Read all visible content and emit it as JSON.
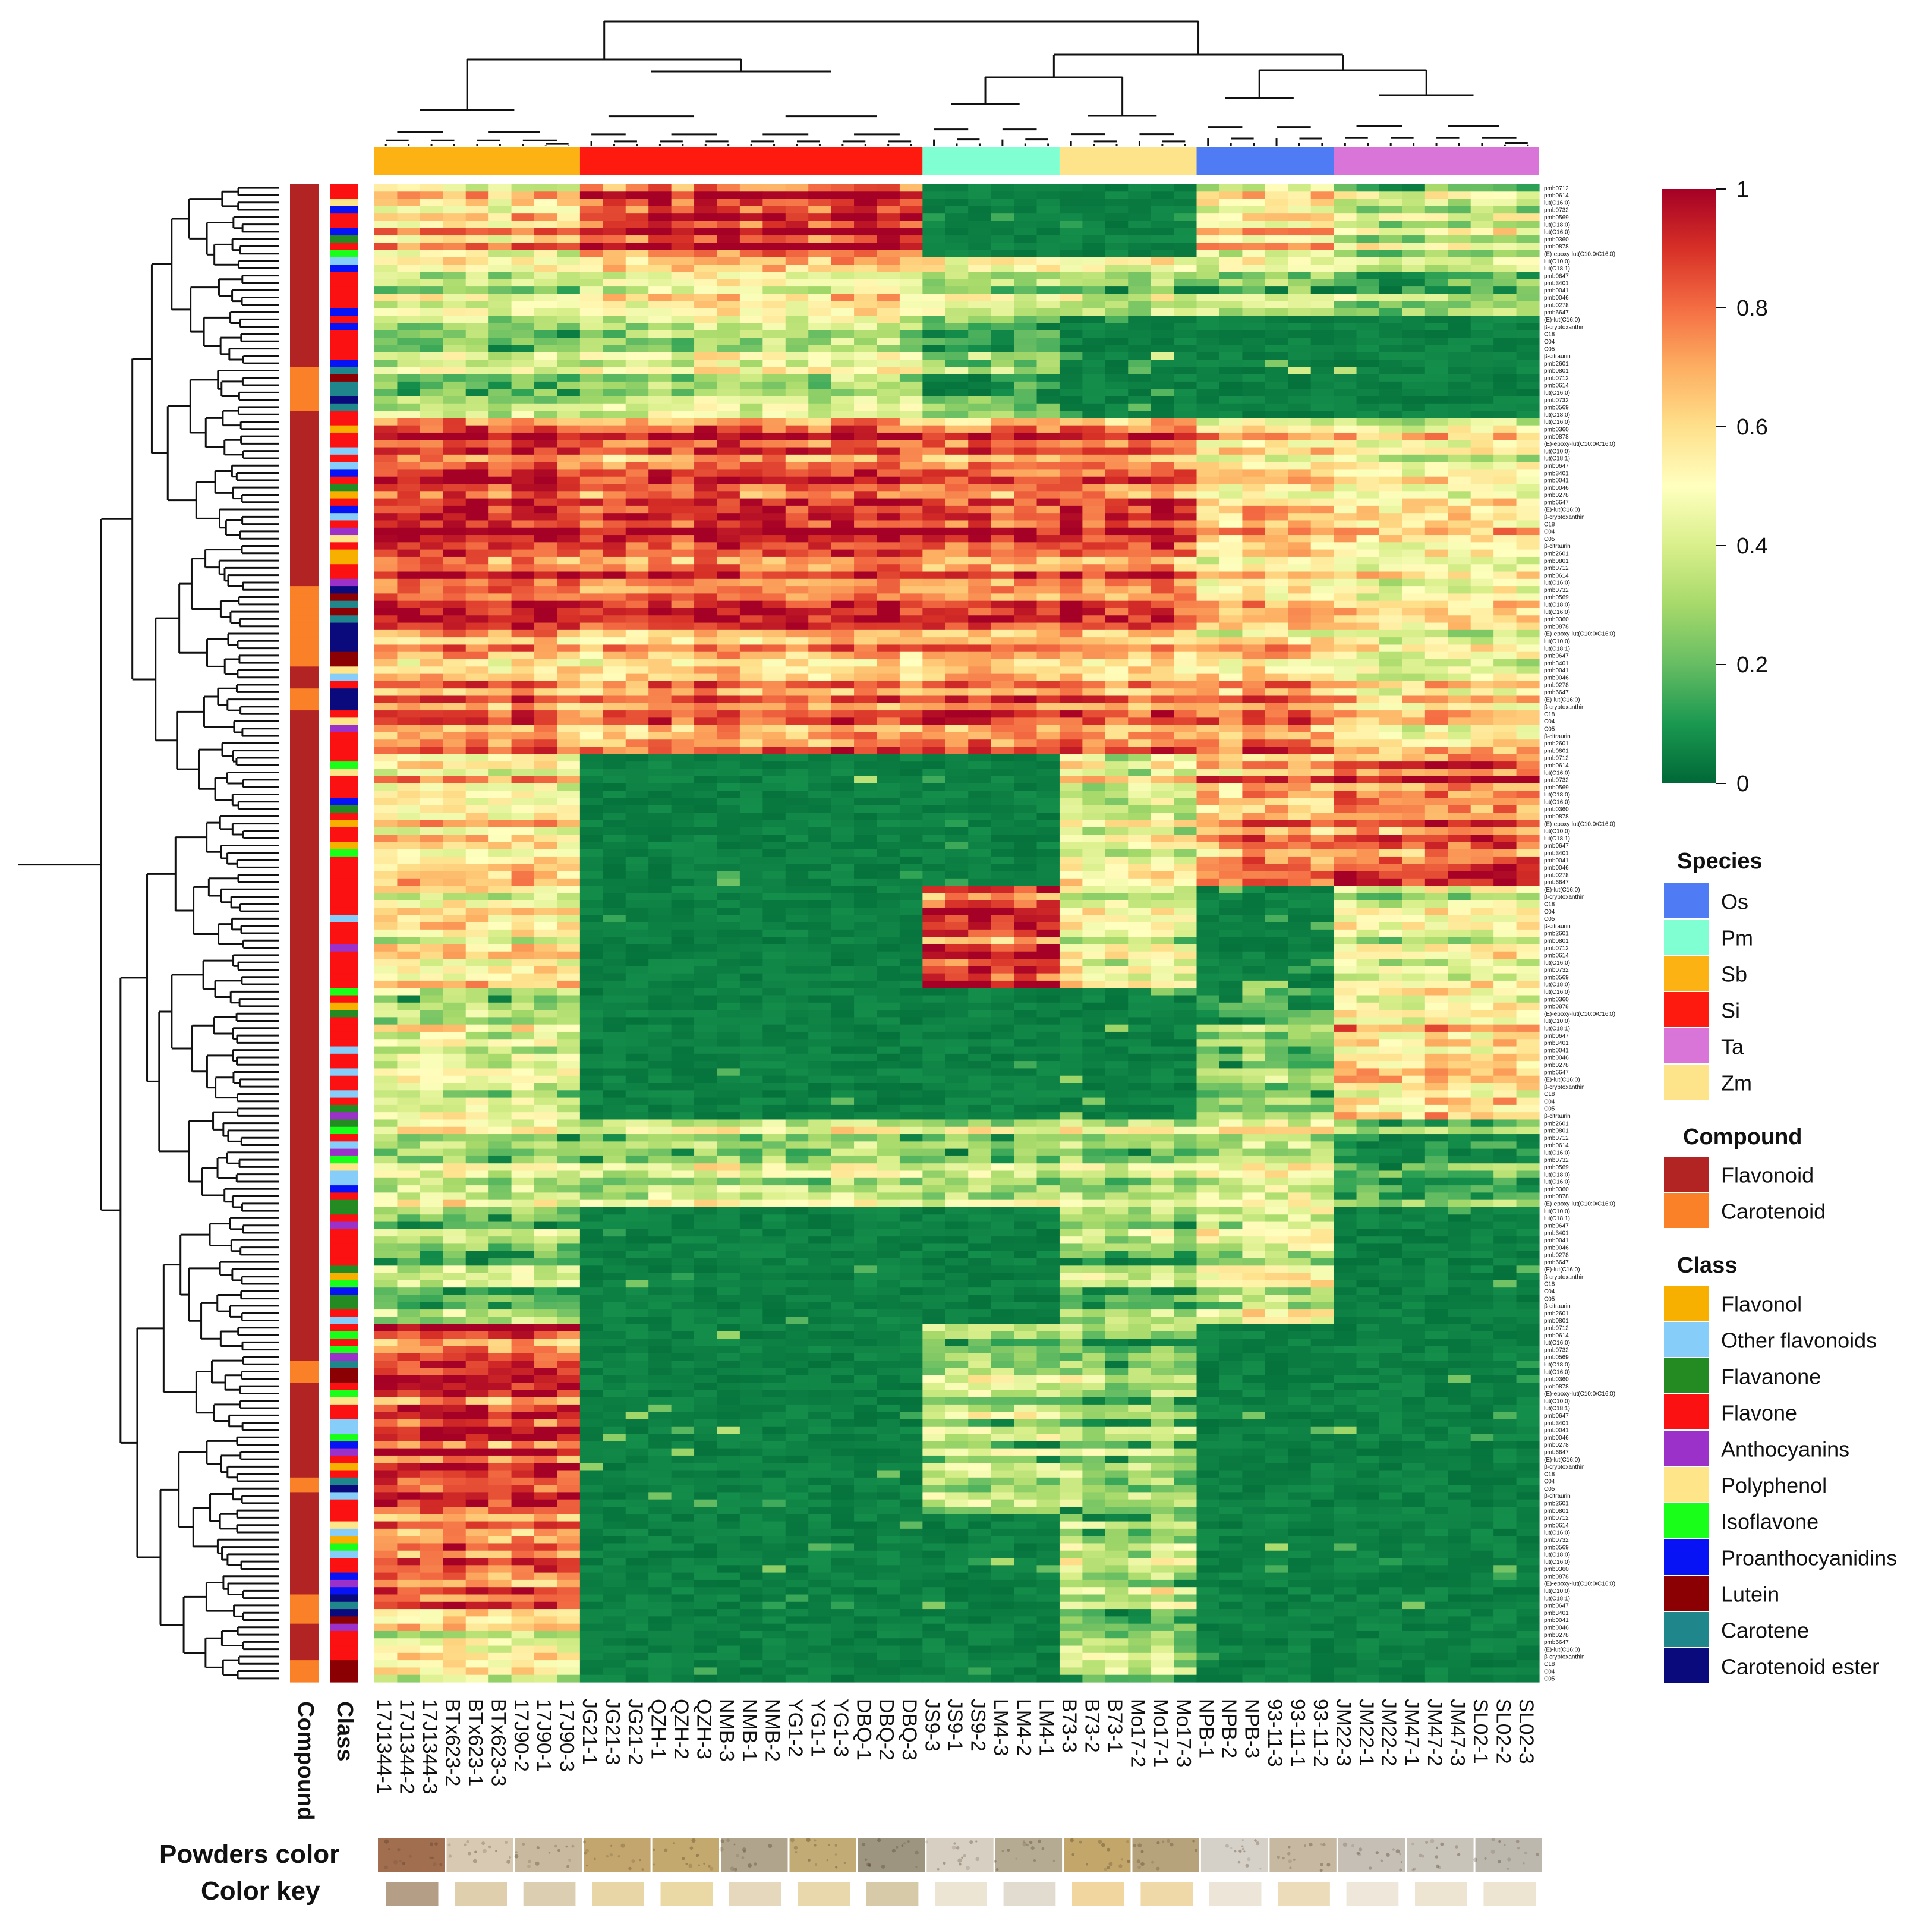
{
  "chart_data": {
    "type": "heatmap",
    "samples": [
      "17J1344-1",
      "17J1344-2",
      "17J1344-3",
      "BTx623-2",
      "BTx623-1",
      "BTx623-3",
      "17J90-2",
      "17J90-1",
      "17J90-3",
      "JG21-1",
      "JG21-3",
      "JG21-2",
      "QZH-1",
      "QZH-2",
      "QZH-3",
      "NMB-3",
      "NMB-1",
      "NMB-2",
      "YG1-2",
      "YG1-1",
      "YG1-3",
      "DBQ-1",
      "DBQ-2",
      "DBQ-3",
      "JS9-3",
      "JS9-1",
      "JS9-2",
      "LM4-3",
      "LM4-2",
      "LM4-1",
      "B73-3",
      "B73-2",
      "B73-1",
      "Mo17-2",
      "Mo17-1",
      "Mo17-3",
      "NPB-1",
      "NPB-2",
      "NPB-3",
      "93-11-3",
      "93-11-1",
      "93-11-2",
      "JM22-3",
      "JM22-1",
      "JM22-2",
      "JM47-1",
      "JM47-2",
      "JM47-3",
      "SL02-1",
      "SL02-2",
      "SL02-3"
    ],
    "species_groups": [
      {
        "species": "Sb",
        "count": 9
      },
      {
        "species": "Si",
        "count": 15
      },
      {
        "species": "Pm",
        "count": 6
      },
      {
        "species": "Zm",
        "count": 6
      },
      {
        "species": "Os",
        "count": 6
      },
      {
        "species": "Ta",
        "count": 9
      }
    ],
    "row_count": 205,
    "color_scale": {
      "min": 0,
      "max": 1,
      "ticks": [
        "1",
        "0.8",
        "0.6",
        "0.4",
        "0.2",
        "0"
      ],
      "colors": [
        "#006837",
        "#1a9850",
        "#66bd63",
        "#a6d96a",
        "#d9ef8b",
        "#ffffbf",
        "#fee08b",
        "#fdae61",
        "#f46d43",
        "#d73027",
        "#a50026"
      ]
    },
    "row_labels_visible": [
      "pmb0712",
      "pmb0614",
      "lut(C16:0)",
      "pmb0732",
      "pmb0569",
      "lut(C18:0)",
      "lut(C16:0)",
      "pmb0360",
      "pmb0878",
      "(E)-epoxy-lut(C10:0/C16:0)",
      "lut(C10:0)",
      "lut(C18:1)",
      "pmb0647",
      "pmb3401",
      "pmb0041",
      "pmb0046",
      "pmb0278",
      "pmb6647",
      "(E)-lut(C16:0)",
      "β-cryptoxanthin",
      "C18",
      "C04",
      "C05",
      "β-citraurin",
      "pmb2601",
      "pmb0801"
    ]
  },
  "legends": {
    "species": {
      "title": "Species",
      "items": [
        {
          "label": "Os",
          "color": "#4f7cf5"
        },
        {
          "label": "Pm",
          "color": "#7fffd2"
        },
        {
          "label": "Sb",
          "color": "#fbb212"
        },
        {
          "label": "Si",
          "color": "#ff1a0f"
        },
        {
          "label": "Ta",
          "color": "#d974d8"
        },
        {
          "label": "Zm",
          "color": "#fde38a"
        }
      ]
    },
    "compound": {
      "title": "Compound",
      "items": [
        {
          "label": "Flavonoid",
          "color": "#b22424"
        },
        {
          "label": "Carotenoid",
          "color": "#fa8127"
        }
      ]
    },
    "class": {
      "title": "Class",
      "items": [
        {
          "label": "Flavonol",
          "color": "#f8b000"
        },
        {
          "label": "Other flavonoids",
          "color": "#86cdfa"
        },
        {
          "label": "Flavanone",
          "color": "#238b22"
        },
        {
          "label": "Flavone",
          "color": "#fb1111"
        },
        {
          "label": "Anthocyanins",
          "color": "#9b31c8"
        },
        {
          "label": "Polyphenol",
          "color": "#fee58a"
        },
        {
          "label": "Isoflavone",
          "color": "#19ff19"
        },
        {
          "label": "Proanthocyanidins",
          "color": "#0713f5"
        },
        {
          "label": "Lutein",
          "color": "#8b0002"
        },
        {
          "label": "Carotene",
          "color": "#1f868b"
        },
        {
          "label": "Carotenoid ester",
          "color": "#0a0a7c"
        }
      ]
    }
  },
  "axis_labels": {
    "compound": "Compound",
    "class": "Class"
  },
  "bottom": {
    "powders_label": "Powders color",
    "key_label": "Color key",
    "powders": [
      "#a26e50",
      "#d8c9b2",
      "#c9b99e",
      "#c3a66e",
      "#c4a96e",
      "#b1a48c",
      "#c2ab74",
      "#9d9580",
      "#d6cfc2",
      "#b5aa92",
      "#c2a66a",
      "#b6a27b",
      "#d6d1c8",
      "#c7b8a1",
      "#c5bfb5",
      "#c9c4b9",
      "#bdb8ae"
    ],
    "keys": [
      "#b49e85",
      "#e0cfad",
      "#dcceb0",
      "#e8d6a6",
      "#ebd9a5",
      "#e6d8bd",
      "#e9d8ab",
      "#d6caa8",
      "#ede5d3",
      "#e2dbd0",
      "#f2d69f",
      "#f0d9a8",
      "#ece5d8",
      "#ecdcb9",
      "#efe8da",
      "#ede4d2",
      "#ede5d1"
    ]
  }
}
